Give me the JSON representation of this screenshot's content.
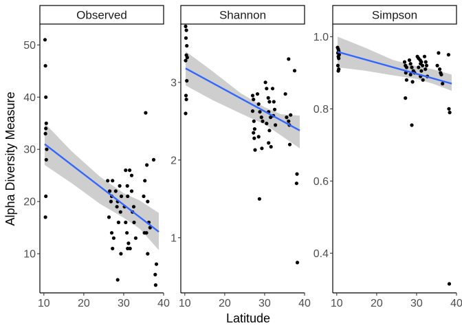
{
  "chart_data": {
    "type": "scatter",
    "xlabel": "Latitude",
    "ylabel": "Alpha Diversity Measure",
    "colors": {
      "point": "#000000",
      "line": "#3366FF",
      "band": "#BEBEBE"
    },
    "panels": [
      {
        "name": "Observed",
        "xlim": [
          9,
          40
        ],
        "ylim": [
          2.5,
          54
        ],
        "xticks": [
          10,
          20,
          30,
          40
        ],
        "yticks": [
          10,
          20,
          30,
          40,
          50
        ],
        "fit": [
          [
            10.2,
            31
          ],
          [
            38.8,
            14.2
          ]
        ],
        "band": {
          "x": [
            10.2,
            17,
            24,
            30,
            34,
            38.8
          ],
          "lower": [
            27,
            23.5,
            19.6,
            16.9,
            14.8,
            10.7
          ],
          "upper": [
            35,
            29.6,
            24.8,
            21.6,
            20.2,
            17.8
          ]
        },
        "points": [
          [
            10.3,
            51
          ],
          [
            10.4,
            46
          ],
          [
            10.5,
            40
          ],
          [
            10.6,
            35
          ],
          [
            10.5,
            34
          ],
          [
            10.4,
            33
          ],
          [
            10.7,
            30
          ],
          [
            10.6,
            28
          ],
          [
            10.5,
            21
          ],
          [
            10.4,
            17
          ],
          [
            26,
            24
          ],
          [
            26.5,
            22
          ],
          [
            27,
            21
          ],
          [
            26.8,
            20
          ],
          [
            27.2,
            24
          ],
          [
            26.3,
            17
          ],
          [
            27,
            14
          ],
          [
            27.5,
            13
          ],
          [
            27.2,
            11
          ],
          [
            28,
            22
          ],
          [
            28.3,
            19
          ],
          [
            28.5,
            20
          ],
          [
            28.7,
            16
          ],
          [
            29,
            23
          ],
          [
            29.4,
            21
          ],
          [
            29.2,
            18
          ],
          [
            28.5,
            5
          ],
          [
            29.3,
            10
          ],
          [
            30.5,
            26
          ],
          [
            30.9,
            23
          ],
          [
            31,
            21
          ],
          [
            31.5,
            26
          ],
          [
            30.2,
            19
          ],
          [
            30.5,
            16
          ],
          [
            30.8,
            14
          ],
          [
            31.2,
            12
          ],
          [
            31,
            11
          ],
          [
            31.6,
            11
          ],
          [
            32,
            25
          ],
          [
            32.5,
            19
          ],
          [
            32.2,
            18
          ],
          [
            32.6,
            16
          ],
          [
            33,
            13
          ],
          [
            32,
            22
          ],
          [
            35.5,
            37
          ],
          [
            35.8,
            27
          ],
          [
            35.3,
            24
          ],
          [
            35,
            21
          ],
          [
            36,
            20
          ],
          [
            35.2,
            14
          ],
          [
            35.7,
            14
          ],
          [
            36.3,
            16
          ],
          [
            36.6,
            15
          ],
          [
            36,
            10
          ],
          [
            37.5,
            28
          ],
          [
            38.2,
            8
          ],
          [
            37.9,
            6
          ],
          [
            38,
            4
          ]
        ]
      },
      {
        "name": "Shannon",
        "xlim": [
          9,
          40
        ],
        "ylim": [
          0.29,
          3.75
        ],
        "xticks": [
          10,
          20,
          30,
          40
        ],
        "yticks": [
          1,
          2,
          3
        ],
        "fit": [
          [
            10.2,
            3.18
          ],
          [
            38.8,
            2.38
          ]
        ],
        "band": {
          "x": [
            10.2,
            17,
            24,
            30,
            34,
            38.8
          ],
          "lower": [
            2.96,
            2.77,
            2.6,
            2.46,
            2.32,
            2.15
          ],
          "upper": [
            3.4,
            3.14,
            2.86,
            2.68,
            2.59,
            2.57
          ]
        },
        "points": [
          [
            10.2,
            3.72
          ],
          [
            10.4,
            3.67
          ],
          [
            10.3,
            3.57
          ],
          [
            10.5,
            3.47
          ],
          [
            10.4,
            3.35
          ],
          [
            10.6,
            3.32
          ],
          [
            10.2,
            3.28
          ],
          [
            10.5,
            3.02
          ],
          [
            10.3,
            2.83
          ],
          [
            10.4,
            2.78
          ],
          [
            10.2,
            2.6
          ],
          [
            27,
            2.83
          ],
          [
            27.2,
            2.78
          ],
          [
            27,
            2.63
          ],
          [
            27.3,
            2.5
          ],
          [
            27.5,
            2.4
          ],
          [
            27.2,
            2.35
          ],
          [
            27.4,
            2.28
          ],
          [
            27.6,
            2.13
          ],
          [
            28.2,
            2.85
          ],
          [
            28.5,
            2.72
          ],
          [
            28.8,
            2.62
          ],
          [
            29.2,
            2.55
          ],
          [
            29.5,
            2.5
          ],
          [
            28.5,
            2.3
          ],
          [
            29.3,
            2.15
          ],
          [
            28.7,
            1.5
          ],
          [
            30.2,
            3.0
          ],
          [
            30.5,
            2.92
          ],
          [
            30.9,
            2.8
          ],
          [
            31.2,
            2.75
          ],
          [
            31,
            2.62
          ],
          [
            31.5,
            2.55
          ],
          [
            30.5,
            2.47
          ],
          [
            31.2,
            2.38
          ],
          [
            31,
            2.22
          ],
          [
            31.6,
            2.17
          ],
          [
            32,
            2.92
          ],
          [
            32.3,
            2.75
          ],
          [
            32.5,
            2.65
          ],
          [
            32.2,
            2.57
          ],
          [
            32.7,
            2.45
          ],
          [
            35.2,
            2.85
          ],
          [
            35.5,
            2.55
          ],
          [
            36,
            2.5
          ],
          [
            36.2,
            2.45
          ],
          [
            36.5,
            2.58
          ],
          [
            36.3,
            2.2
          ],
          [
            36,
            3.3
          ],
          [
            37.5,
            3.15
          ],
          [
            38.1,
            1.82
          ],
          [
            38,
            1.7
          ],
          [
            38.2,
            0.68
          ]
        ]
      },
      {
        "name": "Simpson",
        "xlim": [
          9,
          40
        ],
        "ylim": [
          0.29,
          1.035
        ],
        "xticks": [
          10,
          20,
          30,
          40
        ],
        "yticks": [
          0.4,
          0.6,
          0.8,
          1.0
        ],
        "fit": [
          [
            10.2,
            0.958
          ],
          [
            38.8,
            0.87
          ]
        ],
        "band": {
          "x": [
            10.2,
            17,
            24,
            30,
            34,
            38.8
          ],
          "lower": [
            0.915,
            0.906,
            0.893,
            0.883,
            0.87,
            0.85
          ],
          "upper": [
            1.0,
            0.97,
            0.936,
            0.918,
            0.91,
            0.895
          ]
        },
        "points": [
          [
            10.2,
            0.97
          ],
          [
            10.4,
            0.965
          ],
          [
            10.5,
            0.96
          ],
          [
            10.3,
            0.955
          ],
          [
            10.6,
            0.95
          ],
          [
            10.4,
            0.945
          ],
          [
            10.5,
            0.94
          ],
          [
            10.3,
            0.92
          ],
          [
            10.5,
            0.91
          ],
          [
            10.4,
            0.905
          ],
          [
            27,
            0.93
          ],
          [
            27.2,
            0.92
          ],
          [
            27.5,
            0.915
          ],
          [
            27.3,
            0.9
          ],
          [
            27.5,
            0.88
          ],
          [
            27.2,
            0.83
          ],
          [
            28.2,
            0.935
          ],
          [
            28.5,
            0.925
          ],
          [
            28.8,
            0.915
          ],
          [
            29.2,
            0.905
          ],
          [
            29.5,
            0.9
          ],
          [
            28.5,
            0.895
          ],
          [
            29,
            0.875
          ],
          [
            28.8,
            0.755
          ],
          [
            30.2,
            0.945
          ],
          [
            30.5,
            0.94
          ],
          [
            30.9,
            0.935
          ],
          [
            31.2,
            0.93
          ],
          [
            31,
            0.925
          ],
          [
            31.5,
            0.92
          ],
          [
            30.5,
            0.915
          ],
          [
            31.2,
            0.905
          ],
          [
            31,
            0.89
          ],
          [
            31.6,
            0.88
          ],
          [
            32,
            0.945
          ],
          [
            32.3,
            0.93
          ],
          [
            32.5,
            0.92
          ],
          [
            32.2,
            0.91
          ],
          [
            32.7,
            0.89
          ],
          [
            35.5,
            0.955
          ],
          [
            35.2,
            0.92
          ],
          [
            35.8,
            0.91
          ],
          [
            36,
            0.9
          ],
          [
            36.2,
            0.895
          ],
          [
            36.5,
            0.87
          ],
          [
            38,
            0.95
          ],
          [
            38.1,
            0.8
          ],
          [
            38.3,
            0.79
          ],
          [
            38.2,
            0.315
          ]
        ]
      }
    ]
  }
}
